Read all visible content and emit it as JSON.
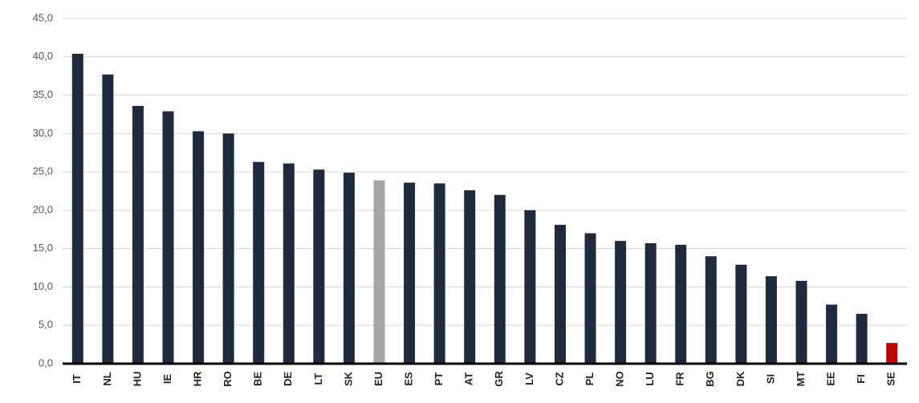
{
  "chart_data": {
    "type": "bar",
    "categories": [
      "IT",
      "NL",
      "HU",
      "IE",
      "HR",
      "RO",
      "BE",
      "DE",
      "LT",
      "SK",
      "EU",
      "ES",
      "PT",
      "AT",
      "GR",
      "LV",
      "CZ",
      "PL",
      "NO",
      "LU",
      "FR",
      "BG",
      "DK",
      "SI",
      "MT",
      "EE",
      "FI",
      "SE"
    ],
    "values": [
      40.4,
      37.7,
      33.6,
      32.9,
      30.3,
      30.0,
      26.3,
      26.1,
      25.3,
      24.9,
      23.9,
      23.6,
      23.5,
      22.6,
      22.0,
      20.0,
      18.1,
      17.0,
      16.0,
      15.7,
      15.5,
      14.0,
      12.9,
      11.4,
      10.8,
      7.7,
      6.5,
      2.7
    ],
    "colors": [
      "#1f2a3c",
      "#1f2a3c",
      "#1f2a3c",
      "#1f2a3c",
      "#1f2a3c",
      "#1f2a3c",
      "#1f2a3c",
      "#1f2a3c",
      "#1f2a3c",
      "#1f2a3c",
      "#a6a6a6",
      "#1f2a3c",
      "#1f2a3c",
      "#1f2a3c",
      "#1f2a3c",
      "#1f2a3c",
      "#1f2a3c",
      "#1f2a3c",
      "#1f2a3c",
      "#1f2a3c",
      "#1f2a3c",
      "#1f2a3c",
      "#1f2a3c",
      "#1f2a3c",
      "#1f2a3c",
      "#1f2a3c",
      "#1f2a3c",
      "#c00000"
    ],
    "ylim": [
      0,
      45
    ],
    "yticks": [
      {
        "value": 0,
        "label": "0,0"
      },
      {
        "value": 5,
        "label": "5,0"
      },
      {
        "value": 10,
        "label": "10,0"
      },
      {
        "value": 15,
        "label": "15,0"
      },
      {
        "value": 20,
        "label": "20,0"
      },
      {
        "value": 25,
        "label": "25,0"
      },
      {
        "value": 30,
        "label": "30,0"
      },
      {
        "value": 35,
        "label": "35,0"
      },
      {
        "value": 40,
        "label": "40,0"
      },
      {
        "value": 45,
        "label": "45,0"
      }
    ],
    "grid": true
  }
}
